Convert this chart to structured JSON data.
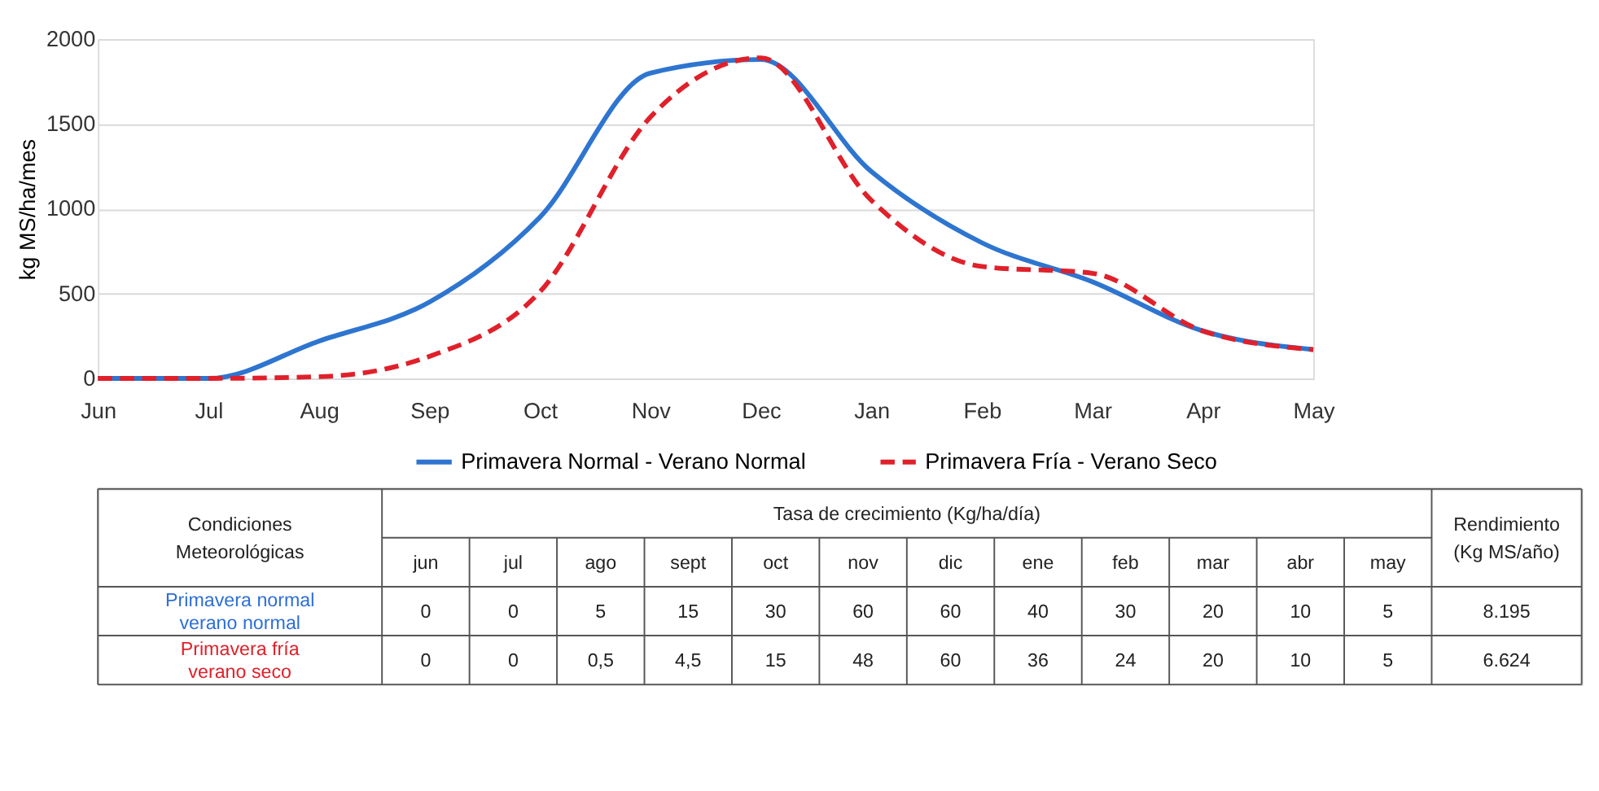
{
  "chart_data": [
    {
      "type": "line",
      "ylabel": "kg MS/ha/mes",
      "ylim": [
        0,
        2000
      ],
      "yticks": [
        0,
        500,
        1000,
        1500,
        2000
      ],
      "categories": [
        "Jun",
        "Jul",
        "Aug",
        "Sep",
        "Oct",
        "Nov",
        "Dec",
        "Jan",
        "Feb",
        "Mar",
        "Apr",
        "May"
      ],
      "grid": "y",
      "legend": "bottom",
      "marker": "none",
      "series": [
        {
          "name": "Primavera Normal - Verano Normal",
          "color": "#2e75d0",
          "line_style": "solid",
          "values": [
            0,
            0,
            220,
            450,
            950,
            1800,
            1880,
            1220,
            800,
            570,
            280,
            170
          ]
        },
        {
          "name": "Primavera Fría - Verano Seco",
          "color": "#e0202a",
          "line_style": "dashed",
          "values": [
            0,
            0,
            10,
            130,
            510,
            1540,
            1890,
            1050,
            660,
            620,
            280,
            170
          ]
        }
      ]
    },
    {
      "type": "other",
      "title": "Tasa de crecimiento (Kg/ha/día)",
      "data_labels": true,
      "categories": [
        "jun",
        "jul",
        "ago",
        "sept",
        "oct",
        "nov",
        "dic",
        "ene",
        "feb",
        "mar",
        "abr",
        "may"
      ],
      "series": [
        {
          "name": "Primavera normal verano normal",
          "color": "#2e6fd8",
          "values": [
            0,
            0,
            5,
            15,
            30,
            60,
            60,
            40,
            30,
            20,
            10,
            5
          ]
        },
        {
          "name": "Primavera fría verano seco",
          "color": "#e0202a",
          "values": [
            0,
            0,
            0.5,
            4.5,
            15,
            48,
            60,
            36,
            24,
            20,
            10,
            5
          ],
          "value_labels": [
            "0",
            "0",
            "0,5",
            "4,5",
            "15",
            "48",
            "60",
            "36",
            "24",
            "20",
            "10",
            "5"
          ]
        }
      ],
      "annotations": [
        "Condiciones Meteorológicas",
        "Rendimiento (Kg MS/año)",
        "8.195",
        "6.624"
      ]
    }
  ]
}
